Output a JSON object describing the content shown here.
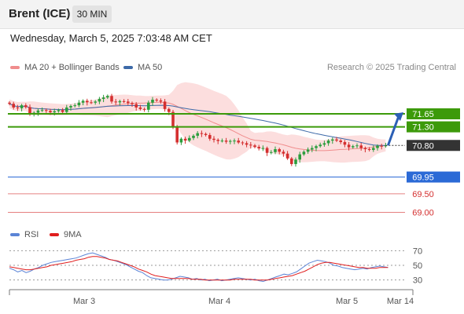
{
  "header": {
    "instrument": "Brent (ICE)",
    "interval": "30 MIN"
  },
  "datetime": "Wednesday, March 5, 2025 7:03:48 AM CET",
  "legend": {
    "ma20": {
      "label": "MA 20 + Bollinger Bands",
      "color": "#f08d8d"
    },
    "ma50": {
      "label": "MA 50",
      "color": "#3d6aa8"
    },
    "rsi": {
      "label": "RSI",
      "color": "#5b84d6"
    },
    "rsi_ma": {
      "label": "9MA",
      "color": "#e01e1e"
    }
  },
  "copyright": "Research © 2025 Trading Central",
  "chart_data": [
    {
      "type": "candlestick",
      "title": "",
      "x_tick_labels": [
        "Mar 3",
        "Mar 4",
        "Mar 5",
        "Mar 14"
      ],
      "ylim": [
        68.8,
        72.6
      ],
      "close": [
        71.92,
        71.82,
        71.8,
        71.88,
        71.83,
        71.65,
        71.68,
        71.74,
        71.75,
        71.73,
        71.69,
        71.72,
        71.75,
        71.7,
        71.82,
        71.86,
        71.88,
        71.95,
        72.0,
        71.96,
        71.95,
        71.98,
        72.05,
        72.09,
        72.13,
        71.98,
        71.96,
        71.99,
        71.98,
        71.94,
        71.91,
        71.82,
        71.78,
        71.76,
        71.95,
        72.03,
        72.01,
        71.98,
        71.78,
        71.7,
        71.28,
        70.88,
        70.98,
        70.93,
        71.0,
        71.06,
        71.13,
        71.11,
        71.08,
        70.98,
        70.95,
        70.92,
        70.93,
        70.9,
        70.92,
        70.93,
        70.88,
        70.86,
        70.82,
        70.8,
        70.76,
        70.72,
        70.73,
        70.6,
        70.62,
        70.7,
        70.63,
        70.58,
        70.45,
        70.3,
        70.42,
        70.56,
        70.63,
        70.69,
        70.73,
        70.78,
        70.82,
        70.86,
        70.93,
        70.96,
        70.93,
        70.89,
        70.82,
        70.75,
        70.78,
        70.8,
        70.73,
        70.7,
        70.68,
        70.73,
        70.79,
        70.78,
        70.8
      ],
      "bollinger_upper_peak": 72.35,
      "series": [
        {
          "name": "MA 20 + Bollinger Bands",
          "color": "#f08d8d"
        },
        {
          "name": "MA 50",
          "color": "#3d6aa8"
        }
      ],
      "levels": [
        {
          "value": 71.65,
          "label": "71.65",
          "kind": "resistance"
        },
        {
          "value": 71.3,
          "label": "71.30",
          "kind": "resistance"
        },
        {
          "value": 70.8,
          "label": "70.80",
          "kind": "last"
        },
        {
          "value": 69.95,
          "label": "69.95",
          "kind": "pivot"
        },
        {
          "value": 69.5,
          "label": "69.50",
          "kind": "support"
        },
        {
          "value": 69.0,
          "label": "69.00",
          "kind": "support"
        }
      ],
      "colors": {
        "up": "#2a9d3c",
        "down": "#d42f2f",
        "resistance": "#3c9a0a",
        "pivot": "#2b6ad6",
        "support": "#e58080",
        "last": "#333333"
      }
    },
    {
      "type": "line",
      "title": "",
      "ylim": [
        20,
        80
      ],
      "y_tick_labels": [
        "70",
        "50",
        "30"
      ],
      "y_ticks": [
        70,
        50,
        30
      ],
      "series": [
        {
          "name": "RSI",
          "color": "#5b84d6",
          "values": [
            46,
            44,
            41,
            43,
            40,
            42,
            45,
            47,
            50,
            52,
            54,
            55,
            56,
            57,
            58,
            59,
            60,
            62,
            64,
            66,
            67,
            65,
            63,
            61,
            58,
            57,
            55,
            53,
            51,
            48,
            45,
            42,
            40,
            36,
            33,
            32,
            31,
            30,
            30,
            31,
            33,
            35,
            34,
            33,
            31,
            32,
            30,
            31,
            29,
            30,
            31,
            29,
            30,
            31,
            32,
            33,
            32,
            31,
            30,
            31,
            29,
            28,
            30,
            32,
            34,
            36,
            38,
            37,
            39,
            41,
            45,
            49,
            53,
            55,
            57,
            56,
            55,
            53,
            50,
            49,
            47,
            46,
            45,
            44,
            45,
            46,
            45,
            47,
            48,
            49,
            48,
            47
          ]
        },
        {
          "name": "9MA",
          "color": "#e01e1e",
          "values": [
            48,
            47,
            46,
            45,
            44,
            44,
            45,
            46,
            47,
            48,
            50,
            51,
            52,
            53,
            54,
            55,
            57,
            58,
            59,
            61,
            62,
            62,
            61,
            60,
            58,
            57,
            56,
            54,
            52,
            50,
            48,
            45,
            43,
            41,
            38,
            36,
            35,
            34,
            33,
            32,
            32,
            32,
            32,
            32,
            31,
            31,
            31,
            30,
            30,
            30,
            30,
            30,
            30,
            30,
            31,
            31,
            31,
            31,
            31,
            30,
            30,
            30,
            30,
            31,
            32,
            33,
            34,
            35,
            36,
            38,
            40,
            42,
            45,
            48,
            51,
            53,
            54,
            54,
            53,
            52,
            51,
            50,
            49,
            48,
            47,
            47,
            46,
            46,
            46,
            47,
            47,
            47
          ]
        }
      ]
    }
  ]
}
